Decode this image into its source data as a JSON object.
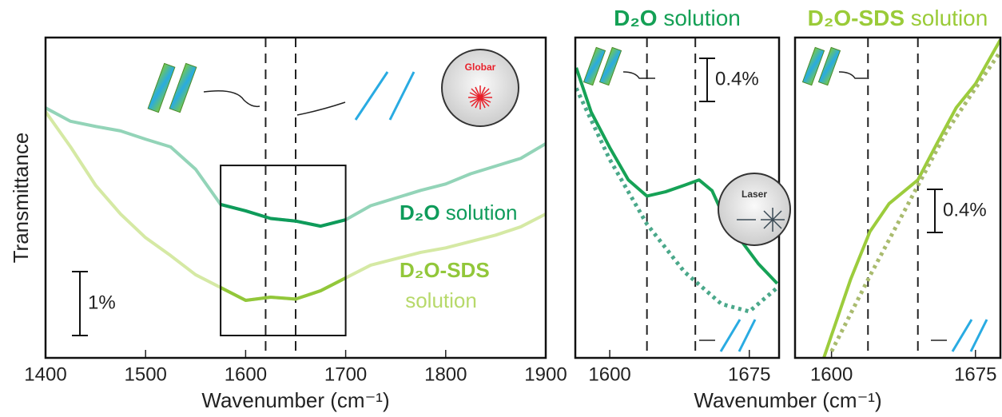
{
  "chart_data": [
    {
      "type": "line",
      "xlabel": "Wavenumber (cm⁻¹)",
      "ylabel": "Transmittance",
      "xlim": [
        1400,
        1900
      ],
      "xticks": [
        1400,
        1500,
        1600,
        1700,
        1800,
        1900
      ],
      "ylim": [
        0,
        5.01
      ],
      "vlines": [
        1620,
        1650
      ],
      "box": {
        "xlim": [
          1575,
          1700
        ],
        "ylim": [
          0.35,
          3.01
        ]
      },
      "scale_bar": {
        "value": 1,
        "label": "1%"
      },
      "annotations": [
        "Globar"
      ],
      "series": [
        {
          "name": "D₂O solution",
          "color": "#93d4b8",
          "highlight_color": "#0e9b5a",
          "x": [
            1400,
            1425,
            1450,
            1475,
            1500,
            1525,
            1550,
            1575,
            1600,
            1625,
            1650,
            1675,
            1700,
            1725,
            1750,
            1775,
            1800,
            1825,
            1850,
            1875,
            1900
          ],
          "values": [
            3.91,
            3.7,
            3.62,
            3.55,
            3.42,
            3.3,
            2.95,
            2.4,
            2.3,
            2.18,
            2.14,
            2.06,
            2.16,
            2.38,
            2.5,
            2.62,
            2.72,
            2.88,
            3.0,
            3.12,
            3.35
          ]
        },
        {
          "name": "D₂O-SDS solution",
          "color": "#d5e9a4",
          "highlight_color": "#92c73a",
          "x": [
            1400,
            1425,
            1450,
            1475,
            1500,
            1525,
            1550,
            1575,
            1600,
            1625,
            1650,
            1675,
            1700,
            1725,
            1750,
            1775,
            1800,
            1825,
            1850,
            1875,
            1900
          ],
          "values": [
            3.85,
            3.3,
            2.7,
            2.25,
            1.88,
            1.6,
            1.3,
            1.1,
            0.9,
            0.95,
            0.92,
            1.05,
            1.25,
            1.45,
            1.55,
            1.65,
            1.72,
            1.82,
            1.92,
            2.05,
            2.25
          ]
        }
      ]
    },
    {
      "type": "line",
      "title": "D₂O solution",
      "title_color": "#14a055",
      "xlabel": "Wavenumber (cm⁻¹)",
      "xlim": [
        1581.5,
        1691
      ],
      "xticks": [
        1600,
        1675
      ],
      "ylim": [
        0,
        2.97
      ],
      "vlines": [
        1620,
        1646
      ],
      "scale_bar": {
        "value": 0.4,
        "label": "0.4%"
      },
      "annotations": [
        "Laser"
      ],
      "series": [
        {
          "color": "#16a256",
          "style": "solid",
          "x": [
            1582,
            1590,
            1600,
            1610,
            1620,
            1630,
            1640,
            1648,
            1655,
            1660,
            1670,
            1680,
            1690
          ],
          "values": [
            2.69,
            2.28,
            1.95,
            1.65,
            1.5,
            1.54,
            1.6,
            1.65,
            1.55,
            1.36,
            1.1,
            0.87,
            0.69
          ]
        },
        {
          "color": "#4aa88a",
          "style": "dotted",
          "x": [
            1582,
            1600,
            1620,
            1640,
            1660,
            1675,
            1690
          ],
          "values": [
            2.5,
            1.84,
            1.24,
            0.8,
            0.5,
            0.43,
            0.65
          ]
        }
      ]
    },
    {
      "type": "line",
      "title": "D₂O-SDS solution",
      "title_color": "#9acb38",
      "xlim": [
        1581,
        1688
      ],
      "xticks": [
        1600,
        1675
      ],
      "ylim": [
        0,
        2.97
      ],
      "vlines": [
        1619,
        1645
      ],
      "scale_bar": {
        "value": 0.4,
        "label": "0.4%"
      },
      "series": [
        {
          "color": "#9ccc3c",
          "style": "solid",
          "x": [
            1596,
            1600,
            1610,
            1620,
            1630,
            1645,
            1655,
            1665,
            1675,
            1688
          ],
          "values": [
            0.0,
            0.21,
            0.73,
            1.17,
            1.43,
            1.65,
            1.99,
            2.32,
            2.54,
            2.95
          ]
        },
        {
          "color": "#a9bb6e",
          "style": "dotted",
          "x": [
            1600,
            1620,
            1640,
            1660,
            1675,
            1688
          ],
          "values": [
            0.06,
            0.76,
            1.43,
            2.1,
            2.5,
            2.84
          ]
        }
      ]
    }
  ]
}
